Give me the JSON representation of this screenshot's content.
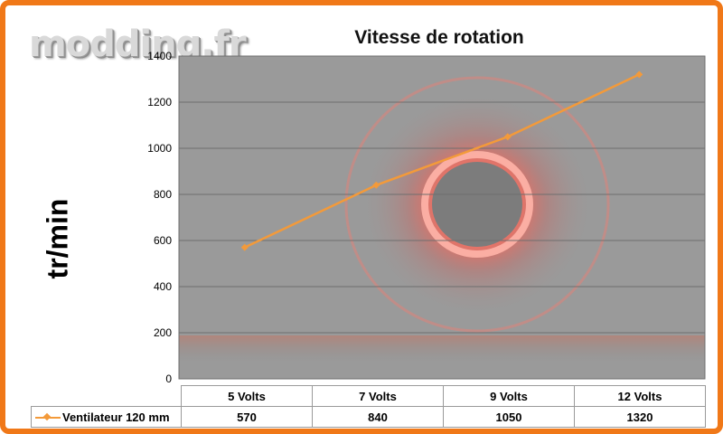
{
  "watermark": "modding.fr",
  "chart_data": {
    "type": "line",
    "title": "Vitesse de rotation",
    "xlabel": "",
    "ylabel": "tr/min",
    "categories": [
      "5 Volts",
      "7 Volts",
      "9 Volts",
      "12 Volts"
    ],
    "series": [
      {
        "name": "Ventilateur 120 mm",
        "values": [
          570,
          840,
          1050,
          1320
        ],
        "color": "#f39a3a"
      }
    ],
    "ylim": [
      0,
      1400
    ],
    "yticks": [
      "0",
      "200",
      "400",
      "600",
      "800",
      "1000",
      "1200",
      "1400"
    ],
    "data_table": true,
    "grid": true,
    "legend": "data-table",
    "background": "photo of a fan with red LED ring (gray tones)"
  }
}
